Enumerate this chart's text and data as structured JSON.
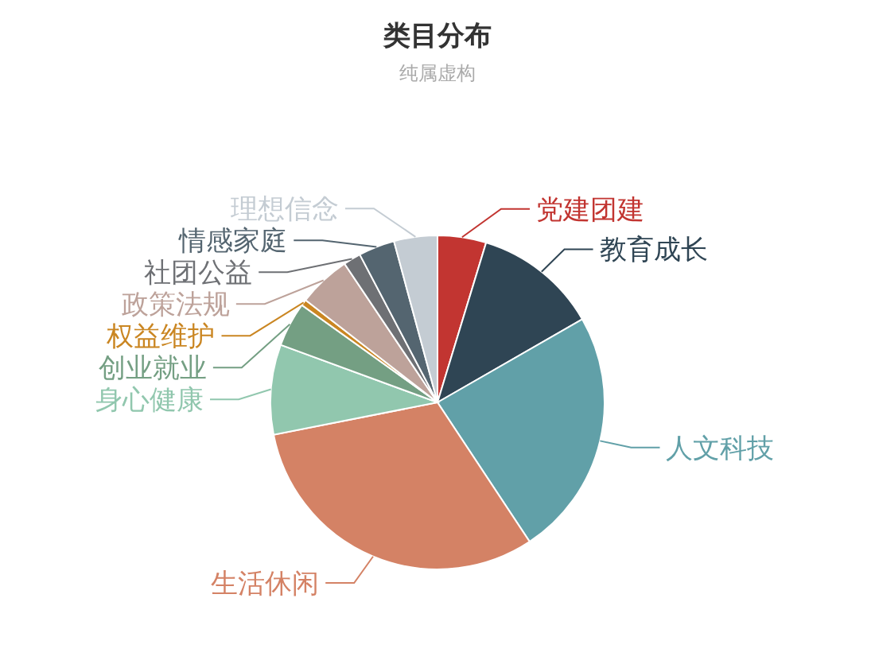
{
  "chart_data": {
    "type": "pie",
    "title": "类目分布",
    "subtitle": "纯属虚构",
    "categories": [
      "党建团建",
      "教育成长",
      "人文科技",
      "生活休闲",
      "身心健康",
      "创业就业",
      "权益维护",
      "政策法规",
      "社团公益",
      "情感家庭",
      "理想信念"
    ],
    "values": [
      4.7,
      12,
      24,
      31.2,
      8.7,
      4.3,
      0.6,
      5.1,
      1.7,
      3.5,
      4.2
    ],
    "colors": [
      "#c23531",
      "#2f4554",
      "#61a0a8",
      "#d48265",
      "#91c7ae",
      "#749f83",
      "#ca8622",
      "#bda29a",
      "#6e7074",
      "#546570",
      "#c4ccd3"
    ],
    "legend": false
  }
}
